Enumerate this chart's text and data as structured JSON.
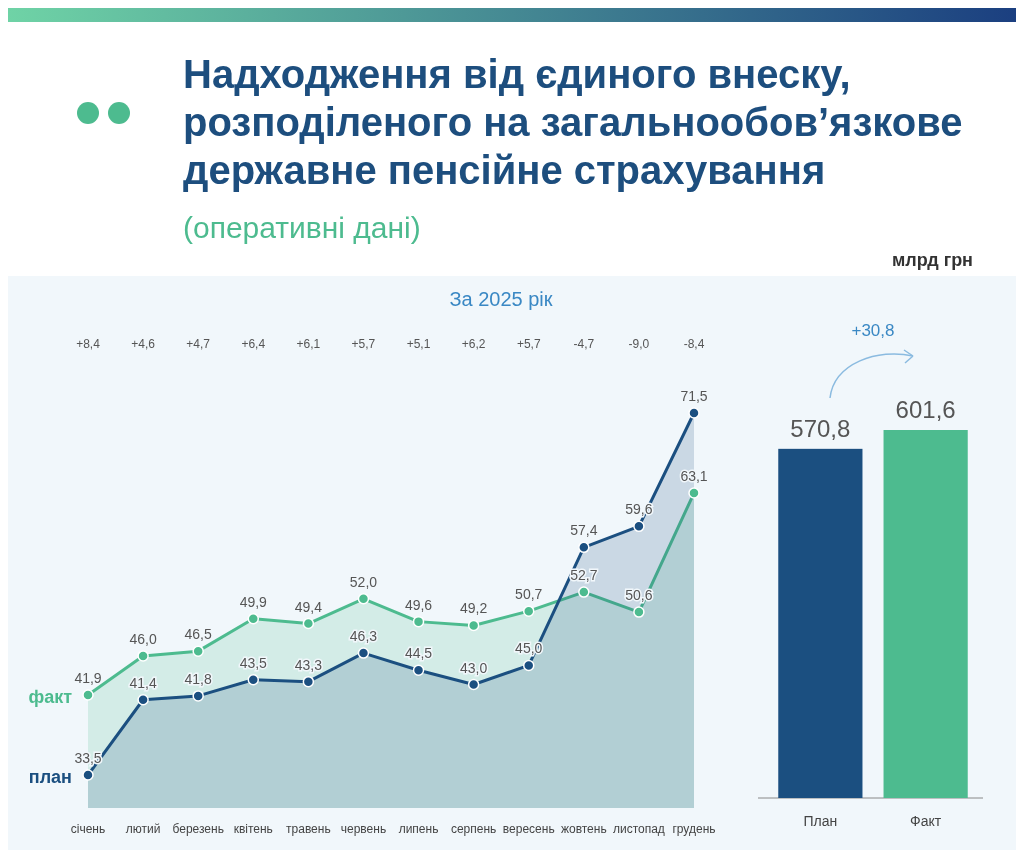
{
  "chart_data": [
    {
      "type": "area",
      "title": "Надходження від єдиного внеску, розподіленого на загальнообов’язкове державне пенсійне страхування",
      "subtitle": "(оперативні дані)",
      "categories": [
        "січень",
        "лютий",
        "березень",
        "квітень",
        "травень",
        "червень",
        "липень",
        "серпень",
        "вересень",
        "жовтень",
        "листопад",
        "грудень"
      ],
      "marker": "circle",
      "legend": false,
      "series": [
        {
          "name": "факт",
          "color": "#4dbb8f",
          "values": [
            41.9,
            46.0,
            46.5,
            49.9,
            49.4,
            52.0,
            49.6,
            49.2,
            50.7,
            52.7,
            50.6,
            63.1
          ],
          "value_labels": [
            "41,9",
            "46,0",
            "46,5",
            "49,9",
            "49,4",
            "52,0",
            "49,6",
            "49,2",
            "50,7",
            "52,7",
            "50,6",
            "63,1"
          ]
        },
        {
          "name": "план",
          "color": "#1b4f80",
          "values": [
            33.5,
            41.4,
            41.8,
            43.5,
            43.3,
            46.3,
            44.5,
            43.0,
            45.0,
            57.4,
            59.6,
            71.5
          ],
          "value_labels": [
            "33,5",
            "41,4",
            "41,8",
            "43,5",
            "43,3",
            "46,3",
            "44,5",
            "43,0",
            "45,0",
            "57,4",
            "59,6",
            "71,5"
          ]
        }
      ],
      "annotations": [
        "За 2025 рік",
        "млрд грн",
        "+8,4",
        "+4,6",
        "+4,7",
        "+6,4",
        "+6,1",
        "+5,7",
        "+5,1",
        "+6,2",
        "+5,7",
        "-4,7",
        "-9,0",
        "-8,4"
      ]
    },
    {
      "type": "bar",
      "categories": [
        "План",
        "Факт"
      ],
      "values": [
        570.8,
        601.6
      ],
      "colors": [
        "#1b4f80",
        "#4dbb8f"
      ],
      "value_labels": [
        "570,8",
        "601,6"
      ],
      "annotations": [
        "+30,8"
      ]
    }
  ]
}
